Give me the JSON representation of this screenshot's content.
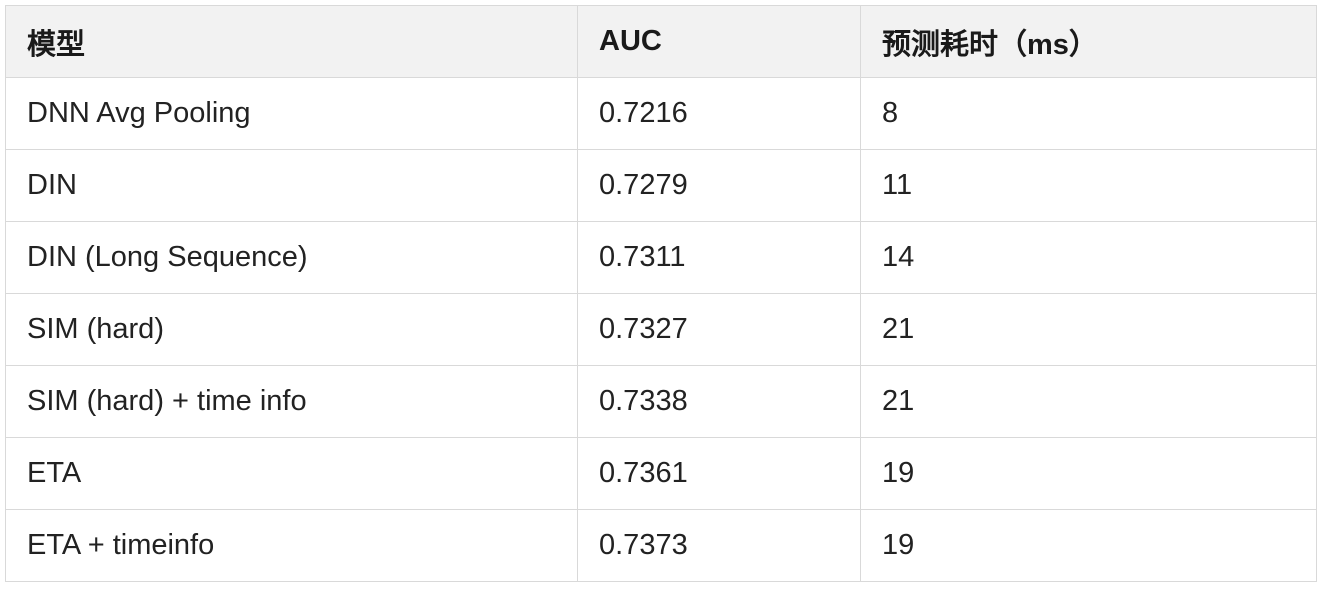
{
  "table": {
    "headers": [
      "模型",
      "AUC",
      "预测耗时（ms）"
    ],
    "rows": [
      [
        "DNN Avg Pooling",
        "0.7216",
        "8"
      ],
      [
        "DIN",
        "0.7279",
        "11"
      ],
      [
        "DIN (Long Sequence)",
        "0.7311",
        "14"
      ],
      [
        "SIM (hard)",
        "0.7327",
        "21"
      ],
      [
        "SIM (hard) + time info",
        "0.7338",
        "21"
      ],
      [
        "ETA",
        "0.7361",
        "19"
      ],
      [
        "ETA + timeinfo",
        "0.7373",
        "19"
      ]
    ]
  },
  "colors": {
    "header_background": "#f2f2f2",
    "border": "#d9d9d9",
    "text": "#1f1f1f"
  }
}
